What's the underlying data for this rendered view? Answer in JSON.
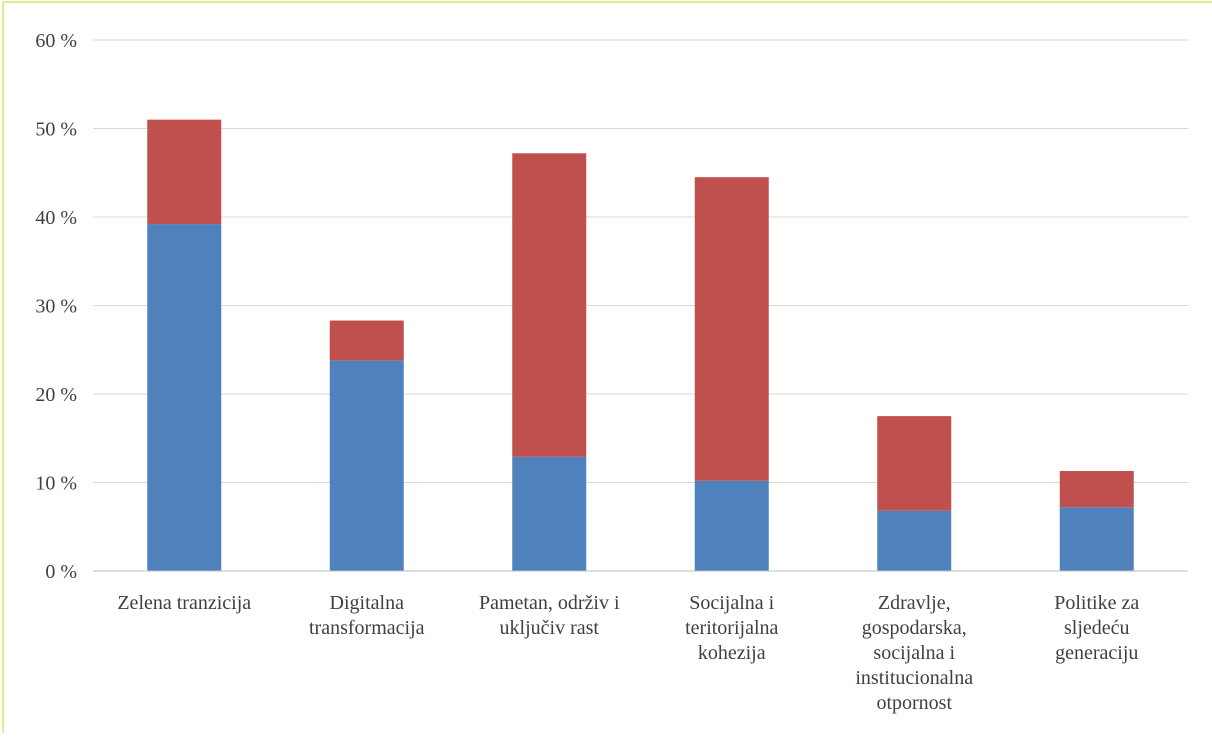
{
  "colors": {
    "series1": "#4f81bd",
    "series2": "#c0504d",
    "grid": "#d9d9d9",
    "axis": "#bfbfbf",
    "text": "#404040",
    "frame": "#e6e88a"
  },
  "chart_data": {
    "type": "bar",
    "stacked": true,
    "title": "",
    "xlabel": "",
    "ylabel": "",
    "ylim": [
      0,
      60
    ],
    "yticks": [
      "0 %",
      "10 %",
      "20 %",
      "30 %",
      "40 %",
      "50 %",
      "60 %"
    ],
    "grid": true,
    "legend": "none",
    "categories": [
      [
        "Zelena tranzicija"
      ],
      [
        "Digitalna",
        "transformacija"
      ],
      [
        "Pametan, održiv i",
        "uključiv rast"
      ],
      [
        "Socijalna i",
        "teritorijalna",
        "kohezija"
      ],
      [
        "Zdravlje,",
        "gospodarska,",
        "socijalna i",
        "institucionalna",
        "otpornost"
      ],
      [
        "Politike za",
        "sljedeću",
        "generaciju"
      ]
    ],
    "series": [
      {
        "values": [
          39.2,
          23.8,
          12.9,
          10.2,
          6.8,
          7.2
        ]
      },
      {
        "values": [
          11.8,
          4.5,
          34.3,
          34.3,
          10.7,
          4.1
        ]
      }
    ]
  }
}
